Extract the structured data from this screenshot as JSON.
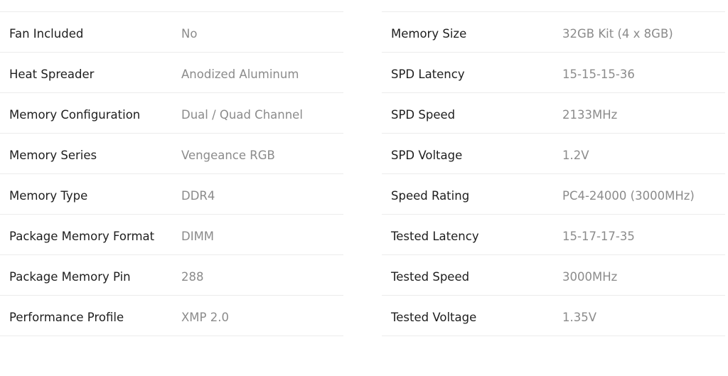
{
  "left_specs": [
    {
      "label": "Fan Included",
      "value": "No"
    },
    {
      "label": "Heat Spreader",
      "value": "Anodized Aluminum"
    },
    {
      "label": "Memory Configuration",
      "value": "Dual / Quad Channel"
    },
    {
      "label": "Memory Series",
      "value": "Vengeance RGB"
    },
    {
      "label": "Memory Type",
      "value": "DDR4"
    },
    {
      "label": "Package Memory Format",
      "value": "DIMM"
    },
    {
      "label": "Package Memory Pin",
      "value": "288"
    },
    {
      "label": "Performance Profile",
      "value": "XMP 2.0"
    }
  ],
  "right_specs": [
    {
      "label": "Memory Size",
      "value": "32GB Kit (4 x 8GB)"
    },
    {
      "label": "SPD Latency",
      "value": "15-15-15-36"
    },
    {
      "label": "SPD Speed",
      "value": "2133MHz"
    },
    {
      "label": "SPD Voltage",
      "value": "1.2V"
    },
    {
      "label": "Speed Rating",
      "value": "PC4-24000 (3000MHz)"
    },
    {
      "label": "Tested Latency",
      "value": "15-17-17-35"
    },
    {
      "label": "Tested Speed",
      "value": "3000MHz"
    },
    {
      "label": "Tested Voltage",
      "value": "1.35V"
    }
  ]
}
